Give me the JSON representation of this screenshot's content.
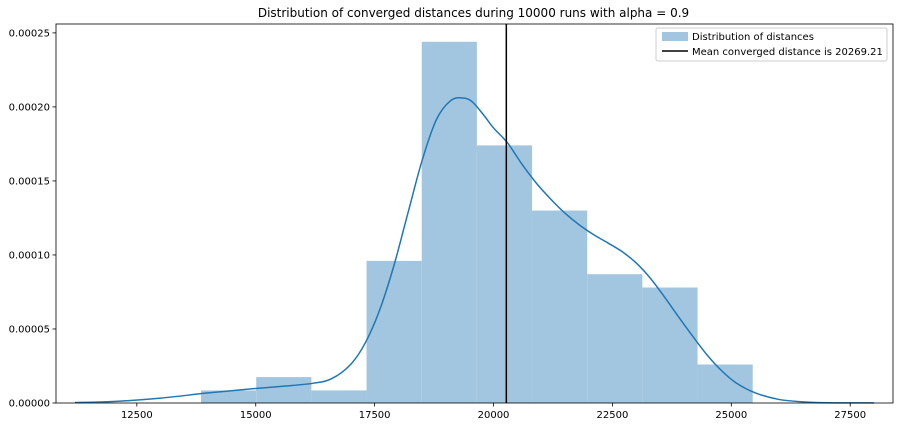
{
  "chart_data": {
    "type": "bar",
    "title": "Distribution of converged distances during 10000 runs with alpha = 0.9",
    "xlabel": "",
    "ylabel": "",
    "xlim": [
      10800,
      28400
    ],
    "ylim": [
      0,
      0.000256
    ],
    "x_ticks": [
      12500,
      15000,
      17500,
      20000,
      22500,
      25000,
      27500
    ],
    "x_tick_labels": [
      "12500",
      "15000",
      "17500",
      "20000",
      "22500",
      "25000",
      "27500"
    ],
    "y_ticks": [
      0,
      5e-05,
      0.0001,
      0.00015,
      0.0002,
      0.00025
    ],
    "y_tick_labels": [
      "0.00000",
      "0.00005",
      "0.00010",
      "0.00015",
      "0.00020",
      "0.00025"
    ],
    "grid": false,
    "legend_position": "top-right",
    "histogram": {
      "name": "Distribution of distances",
      "color": "#a3c6e0",
      "bins": [
        {
          "x0": 13850,
          "x1": 15010,
          "density": 8.5e-06
        },
        {
          "x0": 15010,
          "x1": 16170,
          "density": 1.75e-05
        },
        {
          "x0": 16170,
          "x1": 17330,
          "density": 8.5e-06
        },
        {
          "x0": 17330,
          "x1": 18490,
          "density": 9.6e-05
        },
        {
          "x0": 18490,
          "x1": 19650,
          "density": 0.000244
        },
        {
          "x0": 19650,
          "x1": 20810,
          "density": 0.000174
        },
        {
          "x0": 20810,
          "x1": 21970,
          "density": 0.00013
        },
        {
          "x0": 21970,
          "x1": 23130,
          "density": 8.7e-05
        },
        {
          "x0": 23130,
          "x1": 24290,
          "density": 7.8e-05
        },
        {
          "x0": 24290,
          "x1": 25450,
          "density": 2.6e-05
        }
      ]
    },
    "kde": {
      "color": "#1f77b4",
      "x": [
        11200,
        12000,
        13000,
        14000,
        15000,
        15600,
        16200,
        16600,
        17000,
        17300,
        17600,
        17900,
        18200,
        18500,
        18800,
        19100,
        19350,
        19550,
        19800,
        20000,
        20300,
        20600,
        20900,
        21200,
        21500,
        21800,
        22100,
        22400,
        22700,
        23000,
        23300,
        23600,
        23900,
        24200,
        24500,
        24800,
        25100,
        25500,
        26000,
        26500,
        27000,
        27500,
        28000
      ],
      "y": [
        3e-07,
        1e-06,
        3.3e-06,
        6.8e-06,
        9.8e-06,
        1.14e-05,
        1.33e-05,
        1.65e-05,
        2.62e-05,
        4.04e-05,
        6.23e-05,
        9.22e-05,
        0.0001283,
        0.000164,
        0.0001915,
        0.0002043,
        0.000206,
        0.0002035,
        0.0001942,
        0.0001858,
        0.0001755,
        0.0001612,
        0.0001485,
        0.0001378,
        0.0001283,
        0.0001204,
        0.0001138,
        0.0001082,
        0.0001023,
        9.46e-05,
        8.42e-05,
        7.14e-05,
        5.78e-05,
        4.46e-05,
        3.21e-05,
        2.17e-05,
        1.36e-05,
        6.9e-06,
        2.4e-06,
        8e-07,
        2e-07,
        1e-07,
        1e-07
      ]
    },
    "mean_line": {
      "name": "Mean converged distance is 20269.21",
      "x": 20269.21,
      "color": "#000000"
    }
  }
}
